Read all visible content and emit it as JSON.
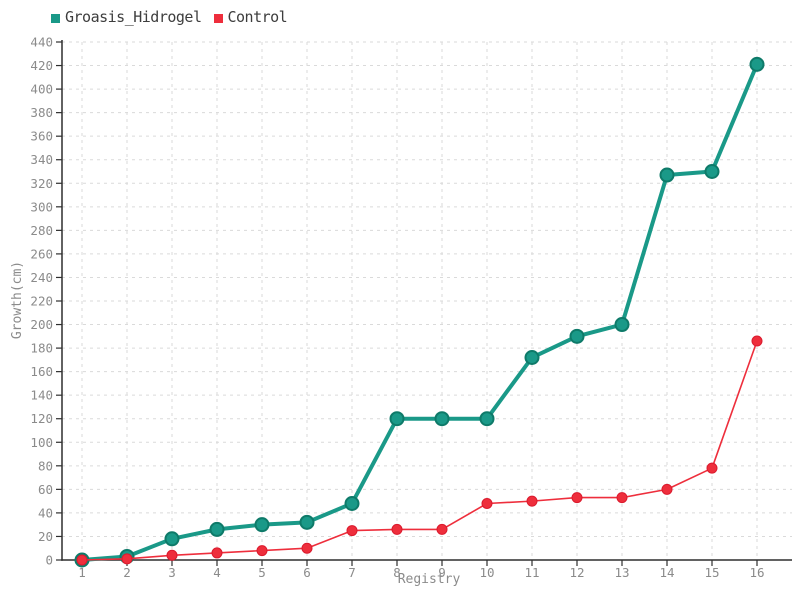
{
  "legend": {
    "items": [
      {
        "label": "Groasis_Hidrogel",
        "color": "#1A9988"
      },
      {
        "label": "Control",
        "color": "#EE2E3C"
      }
    ]
  },
  "chart_data": {
    "type": "line",
    "title": "",
    "xlabel": "Registry",
    "ylabel": "Growth(cm)",
    "x": [
      1,
      2,
      3,
      4,
      5,
      6,
      7,
      8,
      9,
      10,
      11,
      12,
      13,
      14,
      15,
      16
    ],
    "series": [
      {
        "name": "Groasis_Hidrogel",
        "color": "#1A9988",
        "marker_stroke": "#0E7A69",
        "values": [
          0,
          3,
          18,
          26,
          30,
          32,
          48,
          120,
          120,
          120,
          172,
          190,
          200,
          327,
          330,
          421
        ]
      },
      {
        "name": "Control",
        "color": "#EE2E3C",
        "marker_stroke": "#DB1A2D",
        "values": [
          0,
          1,
          4,
          6,
          8,
          10,
          25,
          26,
          26,
          48,
          50,
          53,
          53,
          60,
          78,
          186
        ]
      }
    ],
    "ylim": [
      0,
      440
    ],
    "ytick_step": 20,
    "yticks": [
      0,
      20,
      40,
      60,
      80,
      100,
      120,
      140,
      160,
      180,
      200,
      220,
      240,
      260,
      280,
      300,
      320,
      340,
      360,
      380,
      400,
      420,
      440
    ],
    "grid": "dashed",
    "grid_color": "#DADADA",
    "axis_color": "#2E2E2E",
    "legend_position": "top-left"
  }
}
